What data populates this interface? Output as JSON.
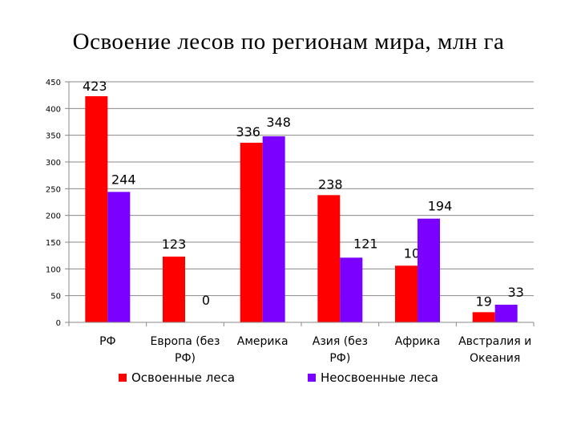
{
  "chart_data": {
    "type": "bar",
    "title": "Освоение лесов по регионам мира, млн га",
    "categories": [
      [
        "РФ"
      ],
      [
        "Европа (без",
        "РФ)"
      ],
      [
        "Америка"
      ],
      [
        "Азия (без",
        "РФ)"
      ],
      [
        "Африка"
      ],
      [
        "Австралия и",
        "Океания"
      ]
    ],
    "series": [
      {
        "name": "Освоенные леса",
        "color": "#ff0000",
        "values": [
          423,
          123,
          336,
          238,
          106,
          19
        ]
      },
      {
        "name": "Неосвоенные леса",
        "color": "#7a00ff",
        "values": [
          244,
          0,
          348,
          121,
          194,
          33
        ]
      }
    ],
    "ylim": [
      0,
      450
    ],
    "yticks": [
      0,
      50,
      100,
      150,
      200,
      250,
      300,
      350,
      400,
      450
    ],
    "grid": true,
    "legend": "bottom"
  }
}
